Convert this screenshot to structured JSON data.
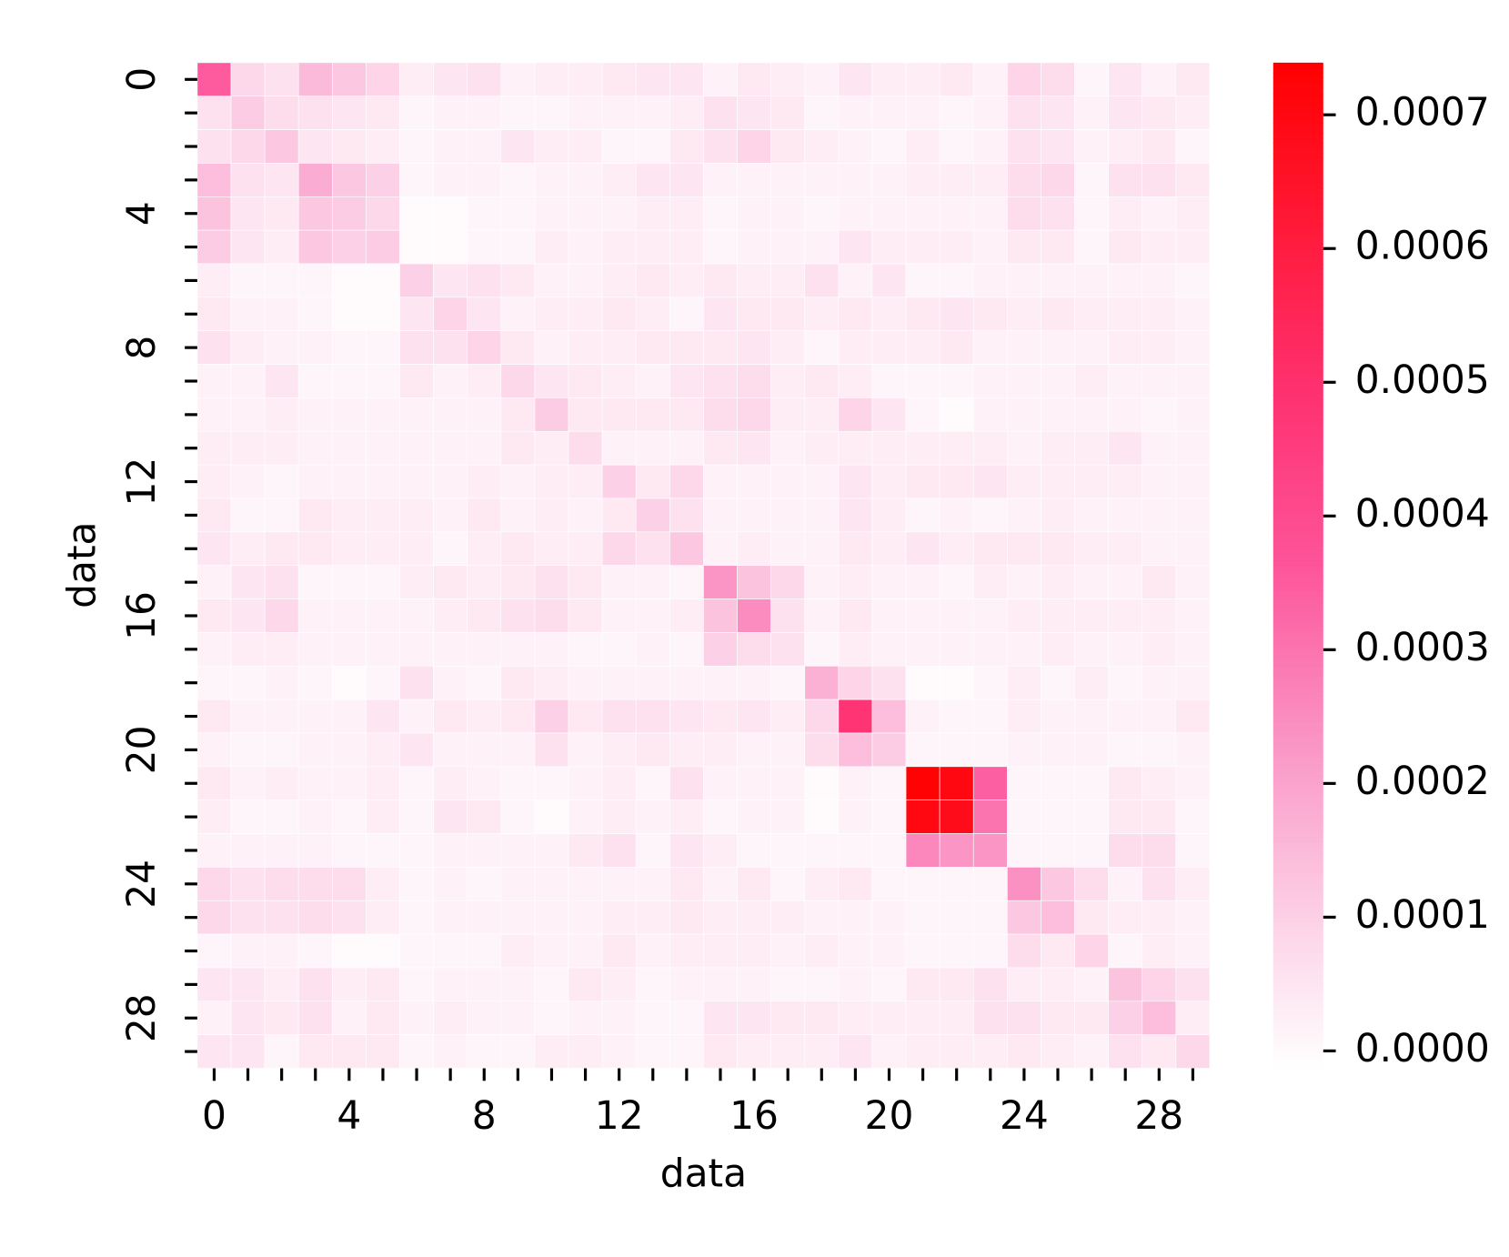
{
  "chart_data": {
    "type": "heatmap",
    "xlabel": "data",
    "ylabel": "data",
    "x": [
      0,
      null,
      null,
      null,
      4,
      null,
      null,
      null,
      8,
      null,
      null,
      null,
      12,
      null,
      null,
      null,
      16,
      null,
      null,
      null,
      20,
      null,
      null,
      null,
      24,
      null,
      null,
      null,
      28,
      null
    ],
    "y": [
      0,
      null,
      null,
      null,
      4,
      null,
      null,
      null,
      8,
      null,
      null,
      null,
      12,
      null,
      null,
      null,
      16,
      null,
      null,
      null,
      20,
      null,
      null,
      null,
      24,
      null,
      null,
      null,
      28,
      null
    ],
    "colormap": [
      "#ffffff",
      "#fccbe3",
      "#fa92c3",
      "#fd559a",
      "#fe3272",
      "#ff1a3a",
      "#ff0000"
    ],
    "clim": [
      -1.3e-05,
      0.000739
    ],
    "cticks": [
      {
        "value": 0,
        "label": "0.0000"
      },
      0.0001,
      0.0002,
      0.0003,
      0.0004,
      0.0005,
      0.0006,
      0.0007
    ],
    "z": [
      [
        0.00035,
        8e-05,
        6e-05,
        0.00015,
        0.00012,
        9e-05,
        3e-05,
        5e-05,
        6e-05,
        2e-05,
        3e-05,
        3e-05,
        4e-05,
        5e-05,
        5e-05,
        2e-05,
        4e-05,
        3e-05,
        2e-05,
        5e-05,
        3e-05,
        3e-05,
        4e-05,
        2e-05,
        9e-05,
        7e-05,
        1e-05,
        5e-05,
        2e-05,
        4e-05
      ],
      [
        6e-05,
        0.00011,
        7e-05,
        6e-05,
        5e-05,
        4e-05,
        1e-05,
        2e-05,
        2e-05,
        1e-05,
        1e-05,
        2e-05,
        2e-05,
        2e-05,
        3e-05,
        6e-05,
        5e-05,
        4e-05,
        1e-05,
        2e-05,
        2e-05,
        2e-05,
        1e-05,
        2e-05,
        6e-05,
        5e-05,
        2e-05,
        5e-05,
        4e-05,
        3e-05
      ],
      [
        6e-05,
        8e-05,
        0.00012,
        5e-05,
        4e-05,
        3e-05,
        1e-05,
        2e-05,
        2e-05,
        5e-05,
        3e-05,
        3e-05,
        1e-05,
        1e-05,
        4e-05,
        6e-05,
        9e-05,
        4e-05,
        3e-05,
        2e-05,
        1e-05,
        3e-05,
        1e-05,
        2e-05,
        6e-05,
        5e-05,
        2e-05,
        3e-05,
        4e-05,
        1e-05
      ],
      [
        0.00014,
        6e-05,
        5e-05,
        0.00018,
        0.00012,
        0.0001,
        1e-05,
        2e-05,
        2e-05,
        1e-05,
        2e-05,
        2e-05,
        3e-05,
        5e-05,
        5e-05,
        2e-05,
        2e-05,
        2e-05,
        2e-05,
        2e-05,
        2e-05,
        3e-05,
        3e-05,
        3e-05,
        7e-05,
        8e-05,
        1e-05,
        6e-05,
        6e-05,
        4e-05
      ],
      [
        0.00013,
        5e-05,
        4e-05,
        0.00012,
        0.00011,
        8e-05,
        0.0,
        0.0,
        1e-05,
        1e-05,
        2e-05,
        2e-05,
        2e-05,
        3e-05,
        3e-05,
        1e-05,
        2e-05,
        2e-05,
        1e-05,
        2e-05,
        2e-05,
        2e-05,
        2e-05,
        2e-05,
        7e-05,
        6e-05,
        1e-05,
        3e-05,
        2e-05,
        3e-05
      ],
      [
        0.00011,
        5e-05,
        3e-05,
        0.00012,
        0.0001,
        0.00011,
        0.0,
        0.0,
        1e-05,
        1e-05,
        3e-05,
        2e-05,
        3e-05,
        3e-05,
        3e-05,
        1e-05,
        2e-05,
        2e-05,
        2e-05,
        5e-05,
        3e-05,
        3e-05,
        3e-05,
        2e-05,
        4e-05,
        4e-05,
        1e-05,
        4e-05,
        3e-05,
        3e-05
      ],
      [
        3e-05,
        1e-05,
        1e-05,
        1e-05,
        0.0,
        0.0,
        0.0001,
        5e-05,
        6e-05,
        4e-05,
        2e-05,
        2e-05,
        3e-05,
        4e-05,
        3e-05,
        4e-05,
        3e-05,
        3e-05,
        6e-05,
        2e-05,
        5e-05,
        1e-05,
        1e-05,
        2e-05,
        2e-05,
        2e-05,
        2e-05,
        2e-05,
        2e-05,
        1e-05
      ],
      [
        4e-05,
        2e-05,
        2e-05,
        1e-05,
        0.0,
        0.0,
        5e-05,
        9e-05,
        5e-05,
        2e-05,
        3e-05,
        3e-05,
        4e-05,
        3e-05,
        1e-05,
        5e-05,
        4e-05,
        4e-05,
        3e-05,
        4e-05,
        3e-05,
        4e-05,
        5e-05,
        4e-05,
        3e-05,
        4e-05,
        3e-05,
        3e-05,
        3e-05,
        2e-05
      ],
      [
        6e-05,
        3e-05,
        2e-05,
        2e-05,
        1e-05,
        1e-05,
        6e-05,
        6e-05,
        9e-05,
        4e-05,
        2e-05,
        3e-05,
        3e-05,
        4e-05,
        4e-05,
        4e-05,
        5e-05,
        3e-05,
        1e-05,
        3e-05,
        3e-05,
        3e-05,
        4e-05,
        2e-05,
        2e-05,
        2e-05,
        2e-05,
        3e-05,
        3e-05,
        2e-05
      ],
      [
        2e-05,
        2e-05,
        5e-05,
        1e-05,
        1e-05,
        1e-05,
        4e-05,
        2e-05,
        3e-05,
        8e-05,
        5e-05,
        4e-05,
        3e-05,
        2e-05,
        5e-05,
        6e-05,
        7e-05,
        3e-05,
        4e-05,
        3e-05,
        1e-05,
        1e-05,
        1e-05,
        2e-05,
        2e-05,
        2e-05,
        3e-05,
        2e-05,
        2e-05,
        2e-05
      ],
      [
        2e-05,
        2e-05,
        3e-05,
        2e-05,
        2e-05,
        2e-05,
        2e-05,
        2e-05,
        2e-05,
        4e-05,
        0.00011,
        4e-05,
        4e-05,
        4e-05,
        4e-05,
        7e-05,
        8e-05,
        3e-05,
        3e-05,
        9e-05,
        5e-05,
        1e-05,
        0.0,
        2e-05,
        2e-05,
        2e-05,
        2e-05,
        2e-05,
        1e-05,
        2e-05
      ],
      [
        3e-05,
        3e-05,
        3e-05,
        2e-05,
        2e-05,
        2e-05,
        2e-05,
        2e-05,
        2e-05,
        4e-05,
        3e-05,
        7e-05,
        2e-05,
        2e-05,
        2e-05,
        4e-05,
        5e-05,
        2e-05,
        3e-05,
        3e-05,
        3e-05,
        3e-05,
        3e-05,
        3e-05,
        2e-05,
        3e-05,
        3e-05,
        5e-05,
        2e-05,
        2e-05
      ],
      [
        3e-05,
        2e-05,
        1e-05,
        2e-05,
        2e-05,
        2e-05,
        2e-05,
        2e-05,
        3e-05,
        2e-05,
        3e-05,
        3e-05,
        0.0001,
        4e-05,
        8e-05,
        2e-05,
        2e-05,
        2e-05,
        2e-05,
        5e-05,
        3e-05,
        4e-05,
        4e-05,
        5e-05,
        3e-05,
        3e-05,
        3e-05,
        3e-05,
        2e-05,
        2e-05
      ],
      [
        4e-05,
        1e-05,
        1e-05,
        4e-05,
        3e-05,
        3e-05,
        3e-05,
        2e-05,
        4e-05,
        2e-05,
        3e-05,
        2e-05,
        4e-05,
        0.0001,
        6e-05,
        2e-05,
        2e-05,
        2e-05,
        2e-05,
        5e-05,
        3e-05,
        1e-05,
        2e-05,
        1e-05,
        2e-05,
        3e-05,
        2e-05,
        2e-05,
        2e-05,
        2e-05
      ],
      [
        5e-05,
        3e-05,
        4e-05,
        4e-05,
        3e-05,
        3e-05,
        3e-05,
        1e-05,
        3e-05,
        4e-05,
        3e-05,
        3e-05,
        8e-05,
        6e-05,
        0.00012,
        2e-05,
        3e-05,
        2e-05,
        2e-05,
        4e-05,
        3e-05,
        5e-05,
        3e-05,
        4e-05,
        4e-05,
        4e-05,
        3e-05,
        3e-05,
        2e-05,
        2e-05
      ],
      [
        2e-05,
        5e-05,
        6e-05,
        1e-05,
        1e-05,
        1e-05,
        3e-05,
        4e-05,
        3e-05,
        4e-05,
        6e-05,
        4e-05,
        2e-05,
        2e-05,
        1e-05,
        0.00023,
        0.00013,
        8e-05,
        2e-05,
        3e-05,
        2e-05,
        2e-05,
        1e-05,
        3e-05,
        2e-05,
        3e-05,
        2e-05,
        2e-05,
        4e-05,
        2e-05
      ],
      [
        4e-05,
        5e-05,
        8e-05,
        2e-05,
        2e-05,
        2e-05,
        2e-05,
        3e-05,
        4e-05,
        6e-05,
        7e-05,
        4e-05,
        2e-05,
        2e-05,
        3e-05,
        0.00013,
        0.00025,
        6e-05,
        2e-05,
        4e-05,
        2e-05,
        2e-05,
        2e-05,
        2e-05,
        3e-05,
        3e-05,
        3e-05,
        3e-05,
        3e-05,
        2e-05
      ],
      [
        2e-05,
        3e-05,
        3e-05,
        2e-05,
        2e-05,
        2e-05,
        2e-05,
        2e-05,
        2e-05,
        2e-05,
        2e-05,
        1e-05,
        1e-05,
        2e-05,
        1e-05,
        0.0001,
        7e-05,
        6e-05,
        1e-05,
        3e-05,
        2e-05,
        2e-05,
        2e-05,
        2e-05,
        2e-05,
        3e-05,
        2e-05,
        2e-05,
        3e-05,
        2e-05
      ],
      [
        1e-05,
        1e-05,
        2e-05,
        1e-05,
        0.0,
        1e-05,
        6e-05,
        2e-05,
        1e-05,
        4e-05,
        3e-05,
        2e-05,
        2e-05,
        2e-05,
        2e-05,
        2e-05,
        2e-05,
        1e-05,
        0.00017,
        9e-05,
        6e-05,
        0.0,
        0.0,
        1e-05,
        3e-05,
        1e-05,
        3e-05,
        1e-05,
        2e-05,
        2e-05
      ],
      [
        4e-05,
        2e-05,
        2e-05,
        2e-05,
        2e-05,
        5e-05,
        2e-05,
        4e-05,
        3e-05,
        4e-05,
        0.0001,
        4e-05,
        6e-05,
        6e-05,
        5e-05,
        4e-05,
        5e-05,
        3e-05,
        8e-05,
        0.00048,
        0.00014,
        2e-05,
        1e-05,
        1e-05,
        3e-05,
        2e-05,
        2e-05,
        2e-05,
        2e-05,
        4e-05
      ],
      [
        2e-05,
        1e-05,
        1e-05,
        2e-05,
        2e-05,
        3e-05,
        5e-05,
        2e-05,
        2e-05,
        2e-05,
        6e-05,
        2e-05,
        3e-05,
        4e-05,
        3e-05,
        3e-05,
        2e-05,
        2e-05,
        7e-05,
        0.00014,
        0.00011,
        1e-05,
        1e-05,
        1e-05,
        2e-05,
        2e-05,
        2e-05,
        1e-05,
        1e-05,
        2e-05
      ],
      [
        4e-05,
        2e-05,
        3e-05,
        2e-05,
        2e-05,
        3e-05,
        1e-05,
        3e-05,
        2e-05,
        1e-05,
        1e-05,
        2e-05,
        3e-05,
        1e-05,
        6e-05,
        2e-05,
        2e-05,
        2e-05,
        0.0,
        2e-05,
        1e-05,
        0.00073,
        0.0007,
        0.00034,
        1e-05,
        1e-05,
        1e-05,
        4e-05,
        3e-05,
        2e-05
      ],
      [
        3e-05,
        1e-05,
        1e-05,
        2e-05,
        1e-05,
        3e-05,
        1e-05,
        5e-05,
        4e-05,
        1e-05,
        0.0,
        2e-05,
        3e-05,
        2e-05,
        3e-05,
        1e-05,
        2e-05,
        2e-05,
        0.0,
        2e-05,
        1e-05,
        0.0007,
        0.00068,
        0.0003,
        1e-05,
        1e-05,
        1e-05,
        4e-05,
        4e-05,
        1e-05
      ],
      [
        2e-05,
        2e-05,
        2e-05,
        2e-05,
        1e-05,
        1e-05,
        1e-05,
        2e-05,
        2e-05,
        2e-05,
        2e-05,
        4e-05,
        6e-05,
        1e-05,
        5e-05,
        3e-05,
        1e-05,
        1e-05,
        1e-05,
        1e-05,
        1e-05,
        0.00026,
        0.00023,
        0.00023,
        1e-05,
        1e-05,
        1e-05,
        7e-05,
        7e-05,
        1e-05
      ],
      [
        8e-05,
        6e-05,
        7e-05,
        7e-05,
        7e-05,
        3e-05,
        1e-05,
        2e-05,
        1e-05,
        2e-05,
        2e-05,
        2e-05,
        2e-05,
        2e-05,
        4e-05,
        2e-05,
        4e-05,
        1e-05,
        3e-05,
        4e-05,
        1e-05,
        1e-05,
        1e-05,
        1e-05,
        0.00024,
        0.00012,
        7e-05,
        2e-05,
        6e-05,
        3e-05
      ],
      [
        8e-05,
        6e-05,
        6e-05,
        7e-05,
        6e-05,
        3e-05,
        1e-05,
        2e-05,
        2e-05,
        2e-05,
        2e-05,
        2e-05,
        3e-05,
        3e-05,
        4e-05,
        3e-05,
        3e-05,
        3e-05,
        2e-05,
        2e-05,
        2e-05,
        1e-05,
        1e-05,
        1e-05,
        0.00012,
        0.00014,
        4e-05,
        3e-05,
        3e-05,
        2e-05
      ],
      [
        1e-05,
        2e-05,
        2e-05,
        1e-05,
        0.0,
        0.0,
        1e-05,
        1e-05,
        1e-05,
        3e-05,
        2e-05,
        2e-05,
        4e-05,
        2e-05,
        3e-05,
        3e-05,
        3e-05,
        2e-05,
        3e-05,
        2e-05,
        2e-05,
        1e-05,
        1e-05,
        1e-05,
        7e-05,
        4e-05,
        9e-05,
        1e-05,
        3e-05,
        2e-05
      ],
      [
        5e-05,
        5e-05,
        3e-05,
        6e-05,
        3e-05,
        4e-05,
        1e-05,
        2e-05,
        2e-05,
        2e-05,
        1e-05,
        4e-05,
        3e-05,
        1e-05,
        2e-05,
        2e-05,
        2e-05,
        1e-05,
        1e-05,
        2e-05,
        1e-05,
        4e-05,
        4e-05,
        6e-05,
        3e-05,
        3e-05,
        2e-05,
        0.00013,
        9e-05,
        6e-05
      ],
      [
        2e-05,
        5e-05,
        4e-05,
        6e-05,
        2e-05,
        4e-05,
        2e-05,
        3e-05,
        2e-05,
        2e-05,
        1e-05,
        2e-05,
        2e-05,
        1e-05,
        1e-05,
        5e-05,
        5e-05,
        4e-05,
        4e-05,
        3e-05,
        3e-05,
        3e-05,
        3e-05,
        6e-05,
        6e-05,
        4e-05,
        4e-05,
        0.0001,
        0.00014,
        3e-05
      ],
      [
        5e-05,
        5e-05,
        1e-05,
        4e-05,
        4e-05,
        4e-05,
        1e-05,
        2e-05,
        1e-05,
        1e-05,
        3e-05,
        3e-05,
        2e-05,
        1e-05,
        1e-05,
        4e-05,
        3e-05,
        3e-05,
        3e-05,
        5e-05,
        2e-05,
        3e-05,
        3e-05,
        3e-05,
        4e-05,
        3e-05,
        2e-05,
        6e-05,
        4e-05,
        8e-05
      ]
    ]
  }
}
